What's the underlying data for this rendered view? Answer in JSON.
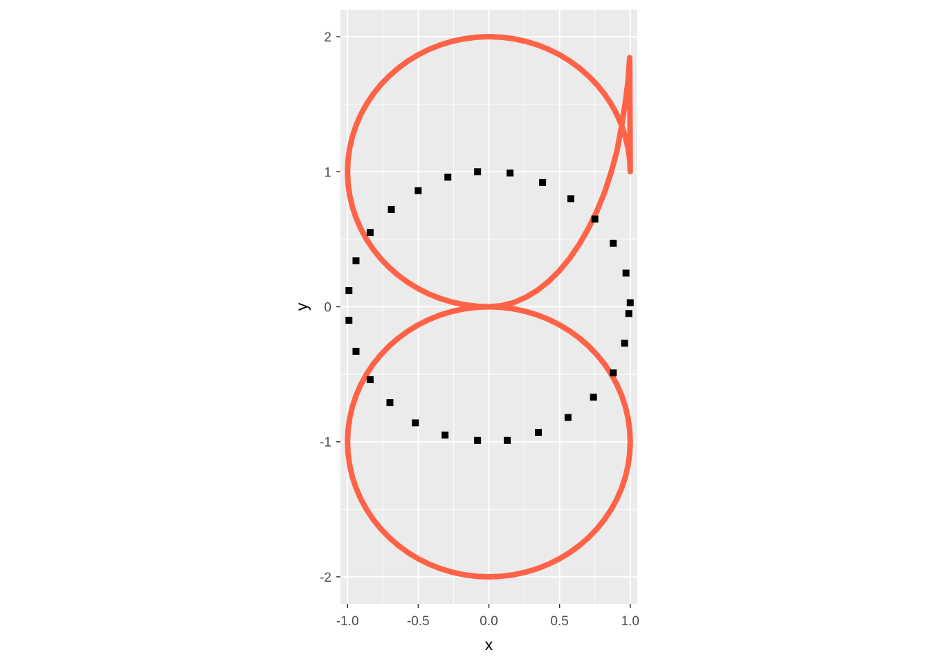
{
  "chart_data": {
    "type": "line",
    "title": "",
    "xlabel": "x",
    "ylabel": "y",
    "xlim": [
      -1.05,
      1.05
    ],
    "ylim": [
      -2.2,
      2.2
    ],
    "x_breaks": [
      -1.0,
      -0.5,
      0.0,
      0.5,
      1.0
    ],
    "x_tick_labels": [
      "-1.0",
      "-0.5",
      "0.0",
      "0.5",
      "1.0"
    ],
    "y_breaks": [
      -2,
      -1,
      0,
      1,
      2
    ],
    "y_tick_labels": [
      "-2",
      "-1",
      "0",
      "1",
      "2"
    ],
    "grid": true,
    "panel_background": "#ebebeb",
    "grid_color": "#ffffff",
    "legend": "none",
    "series": [
      {
        "type": "path",
        "color": "#ff6347",
        "style": "solid",
        "description_shape": "figure-eight",
        "points": [
          [
            0.0,
            0.0
          ],
          [
            0.0875,
            0.0077
          ],
          [
            0.1736,
            0.0304
          ],
          [
            0.2579,
            0.0681
          ],
          [
            0.342,
            0.1206
          ],
          [
            0.4225,
            0.1874
          ],
          [
            0.5,
            0.2679
          ],
          [
            0.5736,
            0.3614
          ],
          [
            0.6428,
            0.4679
          ],
          [
            0.7071,
            0.5858
          ],
          [
            0.766,
            0.7129
          ],
          [
            0.8192,
            0.8486
          ],
          [
            0.866,
            1.0
          ],
          [
            0.9063,
            1.1543
          ],
          [
            0.9397,
            1.342
          ],
          [
            0.9659,
            1.5176
          ],
          [
            0.9848,
            1.6736
          ],
          [
            0.9962,
            1.8448
          ],
          [
            1.0,
            1.0
          ],
          [
            0.9962,
            1.0872
          ],
          [
            0.9848,
            1.1736
          ],
          [
            0.9659,
            1.2588
          ],
          [
            0.9397,
            1.342
          ],
          [
            0.9063,
            1.4226
          ],
          [
            0.866,
            1.5
          ],
          [
            0.8192,
            1.5736
          ],
          [
            0.766,
            1.6428
          ],
          [
            0.7071,
            1.7071
          ],
          [
            0.6428,
            1.766
          ],
          [
            0.5736,
            1.8192
          ],
          [
            0.5,
            1.866
          ],
          [
            0.4226,
            1.9063
          ],
          [
            0.342,
            1.9397
          ],
          [
            0.2588,
            1.9659
          ],
          [
            0.1736,
            1.9848
          ],
          [
            0.0872,
            1.9962
          ],
          [
            0.0,
            2.0
          ],
          [
            -0.0872,
            1.9962
          ],
          [
            -0.1736,
            1.9848
          ],
          [
            -0.2588,
            1.9659
          ],
          [
            -0.342,
            1.9397
          ],
          [
            -0.4226,
            1.9063
          ],
          [
            -0.5,
            1.866
          ],
          [
            -0.5736,
            1.8192
          ],
          [
            -0.6428,
            1.766
          ],
          [
            -0.7071,
            1.7071
          ],
          [
            -0.766,
            1.6428
          ],
          [
            -0.8192,
            1.5736
          ],
          [
            -0.866,
            1.5
          ],
          [
            -0.9063,
            1.4226
          ],
          [
            -0.9397,
            1.342
          ],
          [
            -0.9659,
            1.2588
          ],
          [
            -0.9848,
            1.1736
          ],
          [
            -0.9962,
            1.0872
          ],
          [
            -1.0,
            1.0
          ],
          [
            -0.9962,
            0.9128
          ],
          [
            -0.9848,
            0.8264
          ],
          [
            -0.9659,
            0.7412
          ],
          [
            -0.9397,
            0.658
          ],
          [
            -0.9063,
            0.5774
          ],
          [
            -0.866,
            0.5
          ],
          [
            -0.8192,
            0.4264
          ],
          [
            -0.766,
            0.3572
          ],
          [
            -0.7071,
            0.2929
          ],
          [
            -0.6428,
            0.234
          ],
          [
            -0.5736,
            0.1808
          ],
          [
            -0.5,
            0.134
          ],
          [
            -0.4226,
            0.0937
          ],
          [
            -0.342,
            0.0603
          ],
          [
            -0.2588,
            0.0341
          ],
          [
            -0.1736,
            0.0152
          ],
          [
            -0.0872,
            0.0038
          ],
          [
            0.0,
            0.0
          ],
          [
            0.0872,
            -0.0038
          ],
          [
            0.1736,
            -0.0152
          ],
          [
            0.2588,
            -0.0341
          ],
          [
            0.342,
            -0.0603
          ],
          [
            0.4226,
            -0.0937
          ],
          [
            0.5,
            -0.134
          ],
          [
            0.5736,
            -0.1808
          ],
          [
            0.6428,
            -0.234
          ],
          [
            0.7071,
            -0.2929
          ],
          [
            0.766,
            -0.3572
          ],
          [
            0.8192,
            -0.4264
          ],
          [
            0.866,
            -0.5
          ],
          [
            0.9063,
            -0.5774
          ],
          [
            0.9397,
            -0.658
          ],
          [
            0.9659,
            -0.7412
          ],
          [
            0.9848,
            -0.8264
          ],
          [
            0.9962,
            -0.9128
          ],
          [
            1.0,
            -1.0
          ],
          [
            0.9962,
            -1.0872
          ],
          [
            0.9848,
            -1.1736
          ],
          [
            0.9659,
            -1.2588
          ],
          [
            0.9397,
            -1.342
          ],
          [
            0.9063,
            -1.4226
          ],
          [
            0.866,
            -1.5
          ],
          [
            0.8192,
            -1.5736
          ],
          [
            0.766,
            -1.6428
          ],
          [
            0.7071,
            -1.7071
          ],
          [
            0.6428,
            -1.766
          ],
          [
            0.5736,
            -1.8192
          ],
          [
            0.5,
            -1.866
          ],
          [
            0.4226,
            -1.9063
          ],
          [
            0.342,
            -1.9397
          ],
          [
            0.2588,
            -1.9659
          ],
          [
            0.1736,
            -1.9848
          ],
          [
            0.0872,
            -1.9962
          ],
          [
            0.0,
            -2.0
          ],
          [
            -0.0872,
            -1.9962
          ],
          [
            -0.1736,
            -1.9848
          ],
          [
            -0.2588,
            -1.9659
          ],
          [
            -0.342,
            -1.9397
          ],
          [
            -0.4226,
            -1.9063
          ],
          [
            -0.5,
            -1.866
          ],
          [
            -0.5736,
            -1.8192
          ],
          [
            -0.6428,
            -1.766
          ],
          [
            -0.7071,
            -1.7071
          ],
          [
            -0.766,
            -1.6428
          ],
          [
            -0.8192,
            -1.5736
          ],
          [
            -0.866,
            -1.5
          ],
          [
            -0.9063,
            -1.4226
          ],
          [
            -0.9397,
            -1.342
          ],
          [
            -0.9659,
            -1.2588
          ],
          [
            -0.9848,
            -1.1736
          ],
          [
            -0.9962,
            -1.0872
          ],
          [
            -1.0,
            -1.0
          ],
          [
            -0.9962,
            -0.9128
          ],
          [
            -0.9848,
            -0.8264
          ],
          [
            -0.9659,
            -0.7412
          ],
          [
            -0.9397,
            -0.658
          ],
          [
            -0.9063,
            -0.5774
          ],
          [
            -0.866,
            -0.5
          ],
          [
            -0.8192,
            -0.4264
          ],
          [
            -0.766,
            -0.3572
          ],
          [
            -0.7071,
            -0.2929
          ],
          [
            -0.6428,
            -0.234
          ],
          [
            -0.5736,
            -0.1808
          ],
          [
            -0.5,
            -0.134
          ],
          [
            -0.4226,
            -0.0937
          ],
          [
            -0.342,
            -0.0603
          ],
          [
            -0.2588,
            -0.0341
          ],
          [
            -0.1736,
            -0.0152
          ],
          [
            -0.0872,
            -0.0038
          ],
          [
            0.0,
            0.0
          ]
        ]
      },
      {
        "type": "points",
        "color": "#000000",
        "marker": "square",
        "points": [
          [
            -0.08,
            1.0
          ],
          [
            0.15,
            0.99
          ],
          [
            0.38,
            0.92
          ],
          [
            0.58,
            0.8
          ],
          [
            0.75,
            0.65
          ],
          [
            0.88,
            0.47
          ],
          [
            0.97,
            0.25
          ],
          [
            1.0,
            0.03
          ],
          [
            0.99,
            -0.05
          ],
          [
            0.96,
            -0.27
          ],
          [
            0.88,
            -0.49
          ],
          [
            0.74,
            -0.67
          ],
          [
            0.56,
            -0.82
          ],
          [
            0.35,
            -0.93
          ],
          [
            0.13,
            -0.99
          ],
          [
            -0.08,
            -0.99
          ],
          [
            -0.31,
            -0.95
          ],
          [
            -0.52,
            -0.86
          ],
          [
            -0.7,
            -0.71
          ],
          [
            -0.84,
            -0.54
          ],
          [
            -0.94,
            -0.33
          ],
          [
            -0.99,
            -0.1
          ],
          [
            -0.99,
            0.12
          ],
          [
            -0.94,
            0.34
          ],
          [
            -0.84,
            0.55
          ],
          [
            -0.69,
            0.72
          ],
          [
            -0.5,
            0.86
          ],
          [
            -0.29,
            0.96
          ]
        ]
      }
    ]
  }
}
